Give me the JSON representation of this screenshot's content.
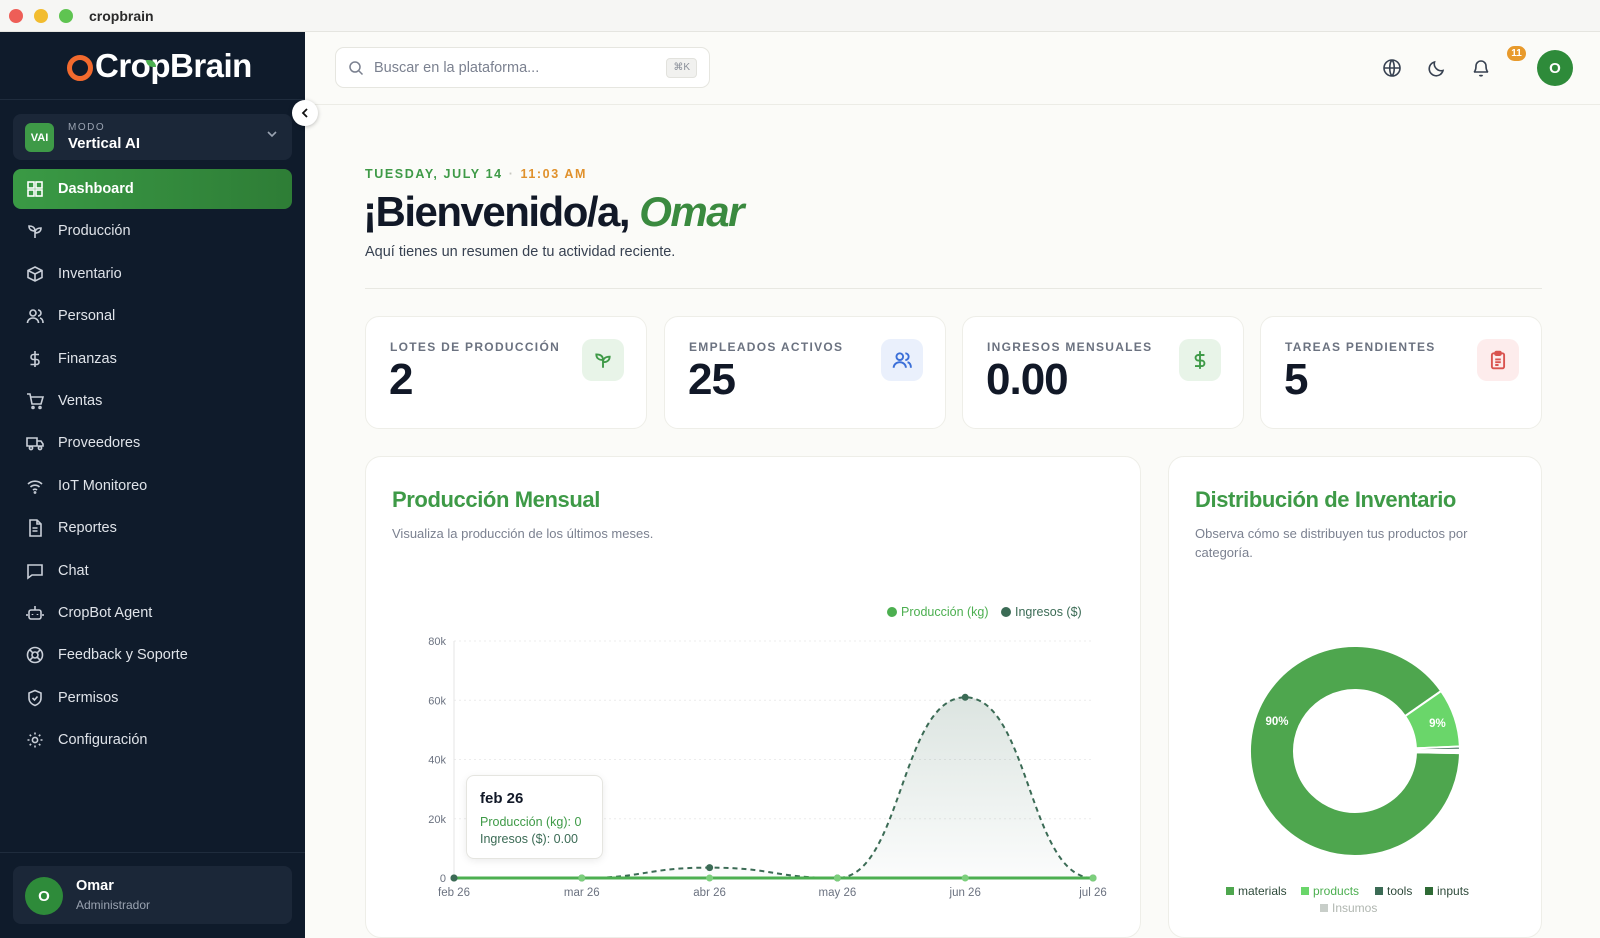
{
  "window": {
    "title": "cropbrain"
  },
  "brand": {
    "name": "CropBrain"
  },
  "mode": {
    "badge": "VAI",
    "label": "MODO",
    "value": "Vertical AI"
  },
  "nav": [
    {
      "label": "Dashboard",
      "icon": "dashboard-icon",
      "active": true
    },
    {
      "label": "Producción",
      "icon": "sprout-icon"
    },
    {
      "label": "Inventario",
      "icon": "package-icon"
    },
    {
      "label": "Personal",
      "icon": "users-icon"
    },
    {
      "label": "Finanzas",
      "icon": "dollar-icon"
    },
    {
      "label": "Ventas",
      "icon": "cart-icon"
    },
    {
      "label": "Proveedores",
      "icon": "truck-icon"
    },
    {
      "label": "IoT Monitoreo",
      "icon": "wifi-icon"
    },
    {
      "label": "Reportes",
      "icon": "file-icon"
    },
    {
      "label": "Chat",
      "icon": "chat-icon"
    },
    {
      "label": "CropBot Agent",
      "icon": "bot-icon"
    },
    {
      "label": "Feedback y Soporte",
      "icon": "lifebuoy-icon"
    },
    {
      "label": "Permisos",
      "icon": "shield-icon"
    },
    {
      "label": "Configuración",
      "icon": "gear-icon"
    }
  ],
  "user": {
    "initial": "O",
    "name": "Omar",
    "role": "Administrador"
  },
  "search": {
    "placeholder": "Buscar en la plataforma...",
    "shortcut": "⌘K"
  },
  "notifications": {
    "count": "11"
  },
  "header": {
    "date": "TUESDAY, JULY 14",
    "time": "11:03 AM",
    "greeting": "¡Bienvenido/a,",
    "name": "Omar",
    "subtitle": "Aquí tienes un resumen de tu actividad reciente."
  },
  "stats": [
    {
      "label": "LOTES DE PRODUCCIÓN",
      "value": "2",
      "icon": "sprout-icon",
      "color": "#3e9a47",
      "bg": "#e8f4e8"
    },
    {
      "label": "EMPLEADOS ACTIVOS",
      "value": "25",
      "icon": "users-icon",
      "color": "#3b6fd8",
      "bg": "#eaf0fc"
    },
    {
      "label": "INGRESOS MENSUALES",
      "value": "0.00",
      "icon": "dollar-icon",
      "color": "#3e9a47",
      "bg": "#e8f4e8"
    },
    {
      "label": "TAREAS PENDIENTES",
      "value": "5",
      "icon": "clipboard-icon",
      "color": "#d9534f",
      "bg": "#fdecec"
    }
  ],
  "production_panel": {
    "title": "Producción Mensual",
    "subtitle": "Visualiza la producción de los últimos meses."
  },
  "inventory_panel": {
    "title": "Distribución de Inventario",
    "subtitle": "Observa cómo se distribuyen tus productos por categoría."
  },
  "tooltip": {
    "title": "feb 26",
    "line1": "Producción (kg): 0",
    "line2": "Ingresos ($): 0.00"
  },
  "chart_data": [
    {
      "type": "line",
      "x": [
        "feb 26",
        "mar 26",
        "abr 26",
        "may 26",
        "jun 26",
        "jul 26"
      ],
      "series": [
        {
          "name": "Producción (kg)",
          "values": [
            0,
            0,
            0,
            0,
            0,
            0
          ],
          "color": "#4caf50"
        },
        {
          "name": "Ingresos ($)",
          "values": [
            0,
            0,
            3500,
            0,
            61000,
            0
          ],
          "color": "#3b6b55"
        }
      ],
      "yticks": [
        "0",
        "20k",
        "40k",
        "60k",
        "80k"
      ],
      "ylim": [
        0,
        80000
      ],
      "legend": "top-right",
      "grid": true
    },
    {
      "type": "pie",
      "categories": [
        "materials",
        "products",
        "tools",
        "inputs",
        "Insumos"
      ],
      "values": [
        90,
        9,
        0.5,
        0.3,
        0.2
      ],
      "labels": [
        "90%",
        "9%",
        "",
        "",
        ""
      ],
      "colors": [
        "#4ea64e",
        "#6ad66a",
        "#3b6b55",
        "#2e6a35",
        "#c8cec9"
      ],
      "legend": "bottom"
    }
  ]
}
